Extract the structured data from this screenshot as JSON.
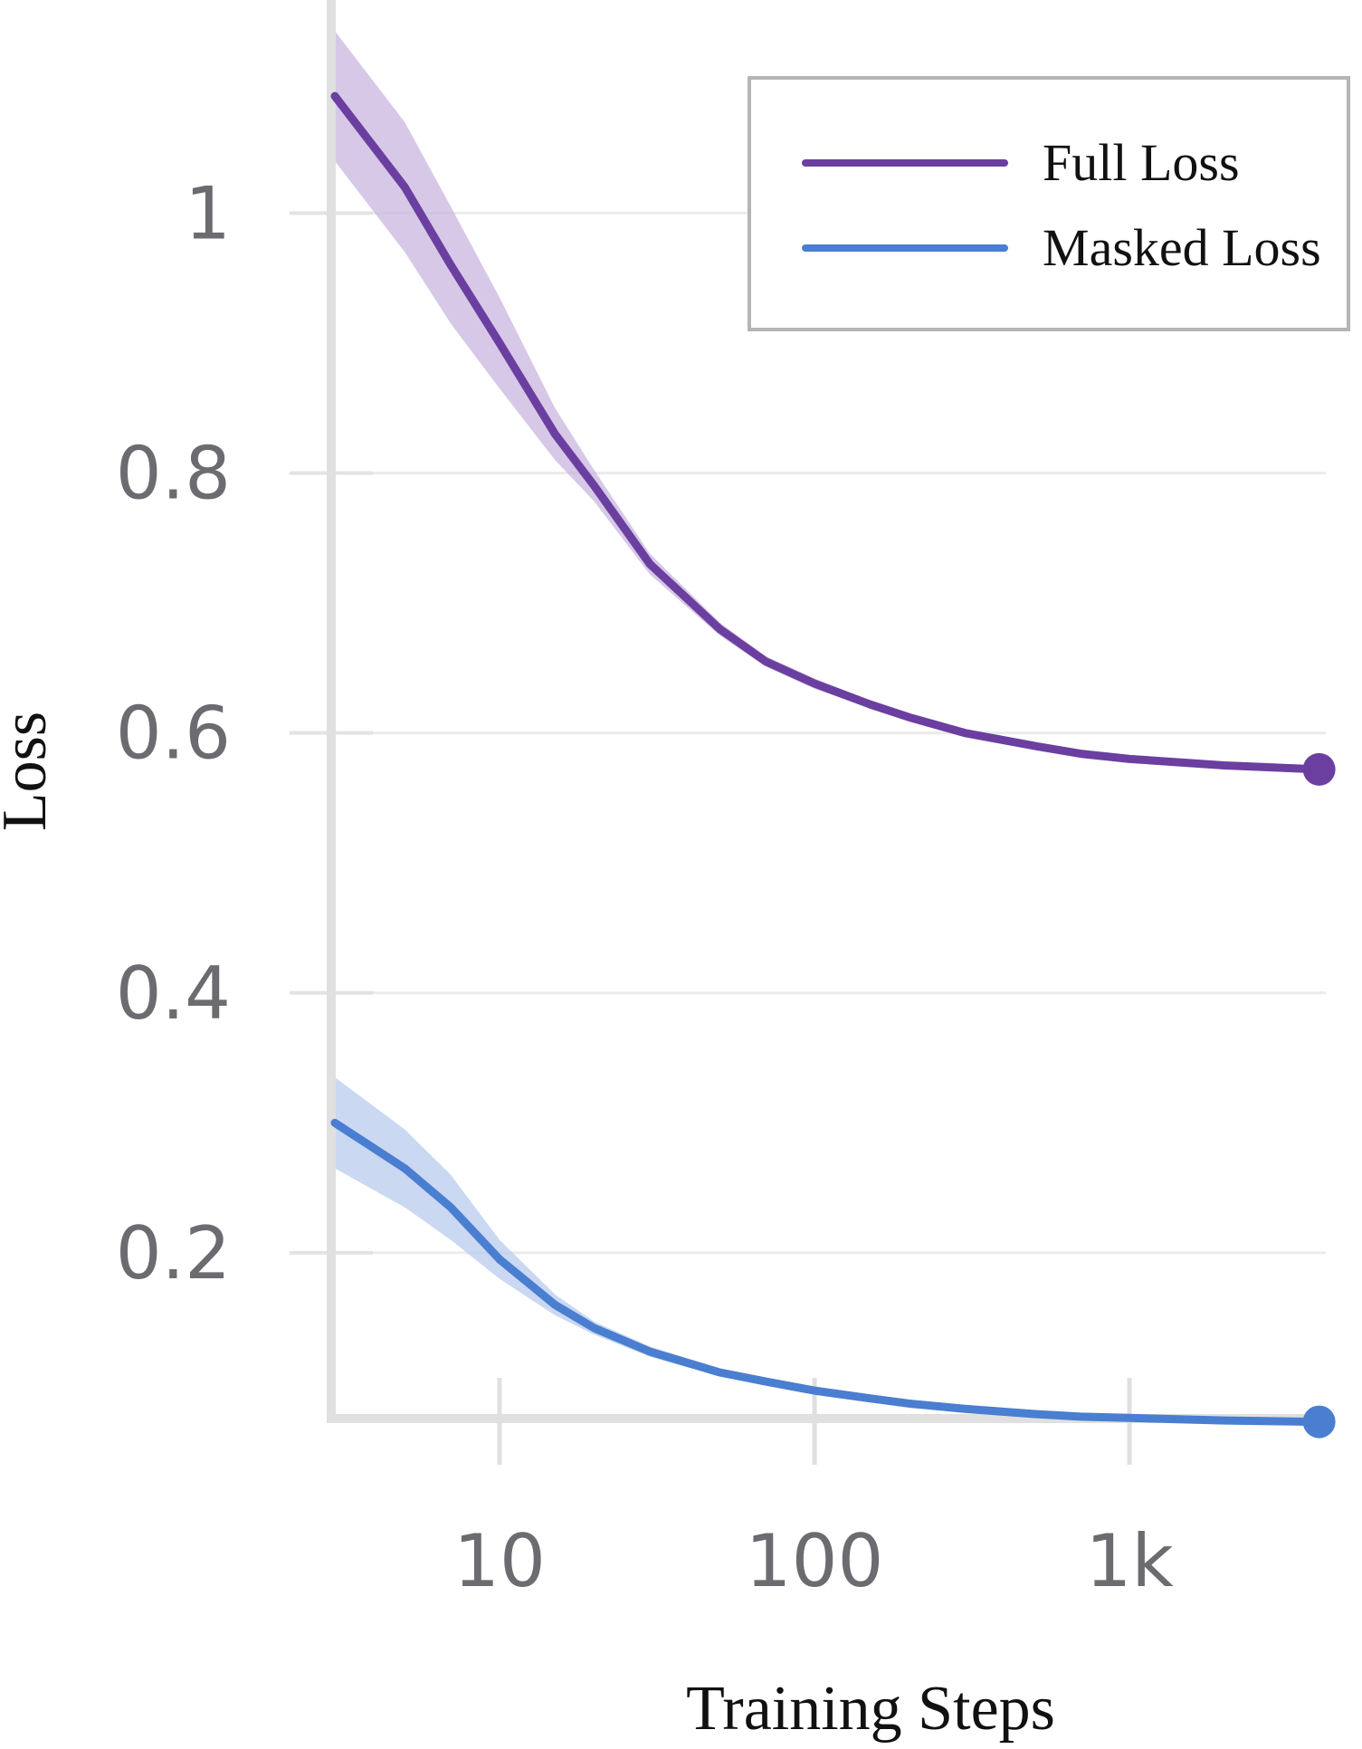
{
  "chart_data": {
    "type": "line",
    "xlabel": "Training Steps",
    "ylabel": "Loss",
    "x_scale": "log",
    "xlim": [
      3,
      4200
    ],
    "ylim": [
      0.069,
      1.15
    ],
    "x_ticks": [
      10,
      100,
      1000
    ],
    "x_tick_labels": [
      "10",
      "100",
      "1k"
    ],
    "y_ticks": [
      0.2,
      0.4,
      0.6,
      0.8,
      1
    ],
    "y_tick_labels": [
      "0.2",
      "0.4",
      "0.6",
      "0.8",
      "1"
    ],
    "grid": "horizontal",
    "legend_position": "top-right",
    "series": [
      {
        "name": "Full Loss",
        "color": "#6b3fa0",
        "band_color": "#c9b6e0",
        "x": [
          3,
          5,
          7,
          10,
          15,
          20,
          30,
          50,
          70,
          100,
          150,
          200,
          300,
          500,
          700,
          1000,
          2000,
          4000
        ],
        "y": [
          1.09,
          1.02,
          0.96,
          0.9,
          0.83,
          0.79,
          0.73,
          0.68,
          0.655,
          0.638,
          0.622,
          0.612,
          0.6,
          0.59,
          0.584,
          0.58,
          0.575,
          0.572
        ],
        "band": [
          0.05,
          0.05,
          0.045,
          0.035,
          0.02,
          0.012,
          0.008,
          0.005,
          0.004,
          0.004,
          0.003,
          0.003,
          0.003,
          0.003,
          0.003,
          0.003,
          0.003,
          0.003
        ]
      },
      {
        "name": "Masked Loss",
        "color": "#4a7ed0",
        "band_color": "#b8cbee",
        "x": [
          3,
          5,
          7,
          10,
          15,
          20,
          30,
          50,
          70,
          100,
          150,
          200,
          300,
          500,
          700,
          1000,
          2000,
          4000
        ],
        "y": [
          0.3,
          0.265,
          0.235,
          0.195,
          0.16,
          0.142,
          0.124,
          0.108,
          0.101,
          0.094,
          0.088,
          0.084,
          0.08,
          0.076,
          0.074,
          0.073,
          0.071,
          0.07
        ],
        "band": [
          0.035,
          0.03,
          0.025,
          0.015,
          0.008,
          0.005,
          0.004,
          0.003,
          0.003,
          0.003,
          0.003,
          0.003,
          0.003,
          0.003,
          0.003,
          0.003,
          0.003,
          0.003
        ]
      }
    ]
  }
}
